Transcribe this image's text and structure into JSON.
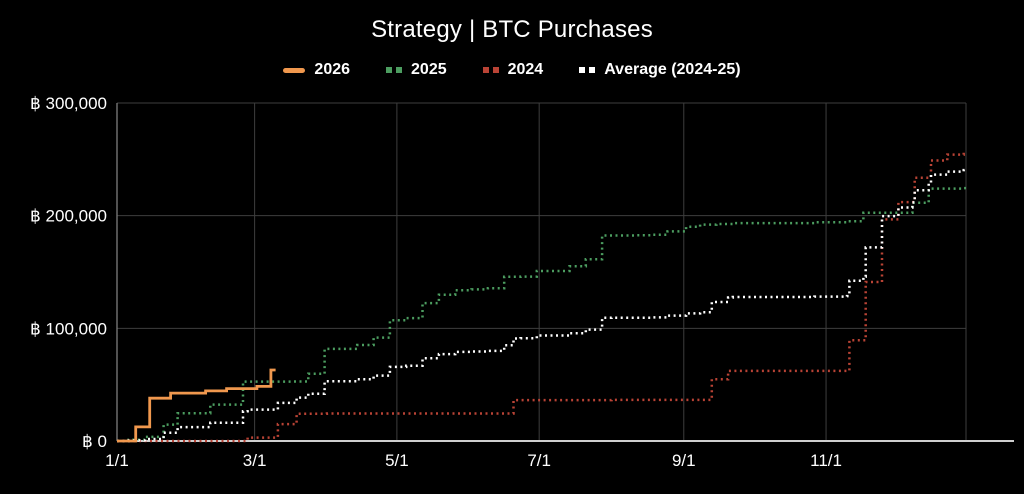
{
  "chart": {
    "title": "Strategy | BTC Purchases"
  },
  "colors": {
    "background": "#000000",
    "grid": "#3e3e3e",
    "y_axis_line": "#7d7d7d",
    "x_axis_line": "#cfcfcf",
    "text": "#ffffff"
  },
  "chart_data": {
    "type": "line",
    "subtype": "cumulative-step",
    "title": "Strategy | BTC Purchases",
    "xlabel": "",
    "ylabel": "",
    "grid": true,
    "legend_position": "top",
    "x_axis": {
      "range": [
        "1/1",
        "12/31"
      ],
      "tick_labels": [
        "1/1",
        "3/1",
        "5/1",
        "7/1",
        "9/1",
        "11/1"
      ],
      "gridline_dates": [
        "3/1",
        "5/1",
        "7/1",
        "9/1",
        "11/1",
        "12/31"
      ]
    },
    "y_axis": {
      "range": [
        0,
        300000
      ],
      "ticks": [
        {
          "value": 0,
          "label": "฿ 0"
        },
        {
          "value": 100000,
          "label": "฿ 100,000"
        },
        {
          "value": 200000,
          "label": "฿ 200,000"
        },
        {
          "value": 300000,
          "label": "฿ 300,000"
        }
      ]
    },
    "series": [
      {
        "name": "2026",
        "color": "#f0984e",
        "style": "solid",
        "extend_to": "3/10",
        "points": [
          [
            "1/1",
            0
          ],
          [
            "1/9",
            12500
          ],
          [
            "1/15",
            38000
          ],
          [
            "1/24",
            42500
          ],
          [
            "2/8",
            44500
          ],
          [
            "2/17",
            46500
          ],
          [
            "3/2",
            48500
          ],
          [
            "3/8",
            63000
          ]
        ]
      },
      {
        "name": "2025",
        "color": "#4c9d60",
        "style": "dotted",
        "extend_to": "12/31",
        "points": [
          [
            "1/1",
            0
          ],
          [
            "1/6",
            1070
          ],
          [
            "1/13",
            3600
          ],
          [
            "1/21",
            14600
          ],
          [
            "1/27",
            24707
          ],
          [
            "2/10",
            32340
          ],
          [
            "2/24",
            52696
          ],
          [
            "3/17",
            52826
          ],
          [
            "3/24",
            59737
          ],
          [
            "3/31",
            81785
          ],
          [
            "4/14",
            85244
          ],
          [
            "4/21",
            91800
          ],
          [
            "4/28",
            107155
          ],
          [
            "5/5",
            109050
          ],
          [
            "5/12",
            122440
          ],
          [
            "5/19",
            129830
          ],
          [
            "5/26",
            133850
          ],
          [
            "6/2",
            134555
          ],
          [
            "6/9",
            135600
          ],
          [
            "6/16",
            145700
          ],
          [
            "6/23",
            145945
          ],
          [
            "6/30",
            150925
          ],
          [
            "7/14",
            155150
          ],
          [
            "7/21",
            161370
          ],
          [
            "7/28",
            182391
          ],
          [
            "8/11",
            182546
          ],
          [
            "8/18",
            182976
          ],
          [
            "8/25",
            186057
          ],
          [
            "9/2",
            190105
          ],
          [
            "9/8",
            192060
          ],
          [
            "9/15",
            192585
          ],
          [
            "9/22",
            193435
          ],
          [
            "10/27",
            194189
          ],
          [
            "11/10",
            195073
          ],
          [
            "11/17",
            202500
          ],
          [
            "12/8",
            211500
          ],
          [
            "12/15",
            224000
          ],
          [
            "12/30",
            224500
          ]
        ]
      },
      {
        "name": "2024",
        "color": "#b94335",
        "style": "dotted",
        "extend_to": "12/31",
        "points": [
          [
            "1/1",
            0
          ],
          [
            "2/26",
            3000
          ],
          [
            "3/11",
            15000
          ],
          [
            "3/19",
            24245
          ],
          [
            "4/1",
            24367
          ],
          [
            "6/20",
            36298
          ],
          [
            "8/1",
            36467
          ],
          [
            "9/13",
            54767
          ],
          [
            "9/20",
            62187
          ],
          [
            "11/11",
            89387
          ],
          [
            "11/18",
            141167
          ],
          [
            "11/25",
            196667
          ],
          [
            "12/2",
            212067
          ],
          [
            "12/9",
            233617
          ],
          [
            "12/16",
            248967
          ],
          [
            "12/23",
            254229
          ],
          [
            "12/30",
            256367
          ]
        ]
      },
      {
        "name": "Average (2024-25)",
        "color": "#ffffff",
        "style": "dotted",
        "extend_to": "12/31",
        "points": [
          [
            "1/1",
            0
          ],
          [
            "1/6",
            535
          ],
          [
            "1/13",
            1800
          ],
          [
            "1/21",
            7300
          ],
          [
            "1/27",
            12354
          ],
          [
            "2/10",
            16170
          ],
          [
            "2/24",
            26348
          ],
          [
            "2/26",
            27848
          ],
          [
            "3/11",
            33848
          ],
          [
            "3/19",
            38536
          ],
          [
            "3/24",
            41991
          ],
          [
            "3/31",
            53015
          ],
          [
            "4/14",
            54806
          ],
          [
            "4/21",
            58084
          ],
          [
            "4/28",
            65761
          ],
          [
            "5/5",
            66709
          ],
          [
            "5/12",
            73404
          ],
          [
            "5/19",
            77099
          ],
          [
            "5/26",
            79109
          ],
          [
            "6/2",
            79461
          ],
          [
            "6/9",
            79984
          ],
          [
            "6/16",
            85034
          ],
          [
            "6/20",
            91000
          ],
          [
            "6/23",
            91122
          ],
          [
            "6/30",
            93612
          ],
          [
            "7/14",
            95724
          ],
          [
            "7/21",
            98834
          ],
          [
            "7/28",
            109345
          ],
          [
            "8/1",
            109429
          ],
          [
            "8/18",
            109722
          ],
          [
            "8/25",
            111262
          ],
          [
            "9/2",
            113286
          ],
          [
            "9/8",
            114264
          ],
          [
            "9/13",
            123414
          ],
          [
            "9/20",
            127386
          ],
          [
            "9/22",
            127811
          ],
          [
            "10/27",
            128188
          ],
          [
            "11/10",
            128630
          ],
          [
            "11/11",
            142230
          ],
          [
            "11/17",
            145944
          ],
          [
            "11/18",
            171834
          ],
          [
            "11/25",
            199584
          ],
          [
            "12/2",
            207284
          ],
          [
            "12/8",
            211784
          ],
          [
            "12/9",
            222559
          ],
          [
            "12/15",
            228809
          ],
          [
            "12/16",
            236484
          ],
          [
            "12/23",
            239115
          ],
          [
            "12/30",
            240434
          ]
        ]
      }
    ]
  }
}
